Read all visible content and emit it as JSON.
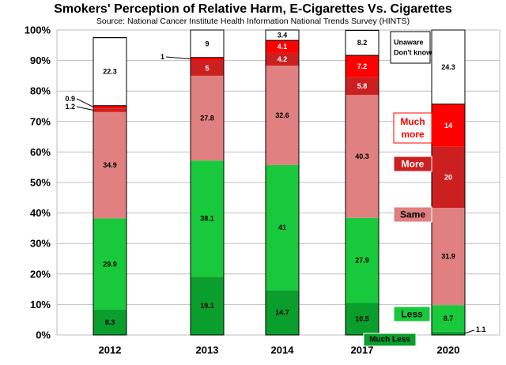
{
  "chart_data": {
    "type": "bar",
    "stacked": true,
    "title": "Smokers' Perception of Relative Harm, E-Cigarettes Vs. Cigarettes",
    "subtitle": "Source: National Cancer Institute Health Information National Trends Survey (HINTS)",
    "categories": [
      "2012",
      "2013",
      "2014",
      "2017",
      "2020"
    ],
    "ylim": [
      0,
      100
    ],
    "ytick_labels": [
      "0%",
      "10%",
      "20%",
      "30%",
      "40%",
      "50%",
      "60%",
      "70%",
      "80%",
      "90%",
      "100%"
    ],
    "grid": true,
    "series": [
      {
        "name": "Much Less",
        "color": "#0a9e2c",
        "values": [
          8.3,
          19.1,
          14.7,
          10.5,
          1.1
        ]
      },
      {
        "name": "Less",
        "color": "#18c93c",
        "values": [
          29.9,
          38.1,
          41,
          27.9,
          8.7
        ]
      },
      {
        "name": "Same",
        "color": "#e08080",
        "values": [
          34.9,
          27.8,
          32.6,
          40.3,
          31.9
        ]
      },
      {
        "name": "More",
        "color": "#cc2020",
        "values": [
          1.2,
          5,
          4.2,
          5.8,
          20
        ]
      },
      {
        "name": "Much more",
        "color": "#ff0000",
        "values": [
          0.9,
          1,
          4.1,
          7.2,
          14
        ]
      },
      {
        "name": "Unaware Don't know",
        "color": "#ffffff",
        "values": [
          22.3,
          9,
          3.4,
          8.2,
          24.3
        ]
      }
    ]
  }
}
